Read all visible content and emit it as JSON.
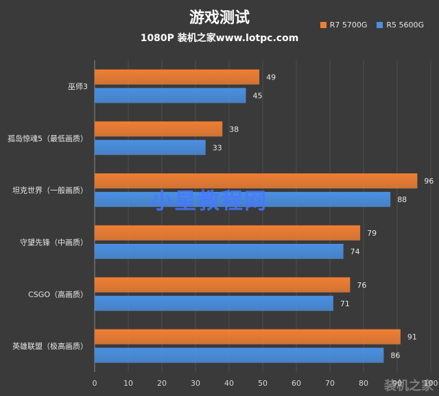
{
  "chart_data": {
    "type": "bar",
    "orientation": "horizontal",
    "title": "游戏测试",
    "subtitle": "1080P  装机之家www.lotpc.com",
    "categories": [
      "巫师3",
      "孤岛惊魂5（最低画质）",
      "坦克世界（一般画质）",
      "守望先锋（中画质）",
      "CSGO（高画质）",
      "英雄联盟（极高画质）"
    ],
    "series": [
      {
        "name": "R7 5700G",
        "color": "#f07f33",
        "values": [
          49,
          38,
          96,
          79,
          76,
          91
        ]
      },
      {
        "name": "R5 5600G",
        "color": "#4a90e2",
        "values": [
          45,
          33,
          88,
          74,
          71,
          86
        ]
      }
    ],
    "xlim": [
      0,
      100
    ],
    "xticks": [
      0,
      10,
      20,
      30,
      40,
      50,
      60,
      70,
      80,
      90,
      100
    ],
    "grid": true,
    "legend_position": "top-right",
    "data_labels": true
  },
  "watermark": "小星教程网",
  "corner_watermark": "装机之家"
}
